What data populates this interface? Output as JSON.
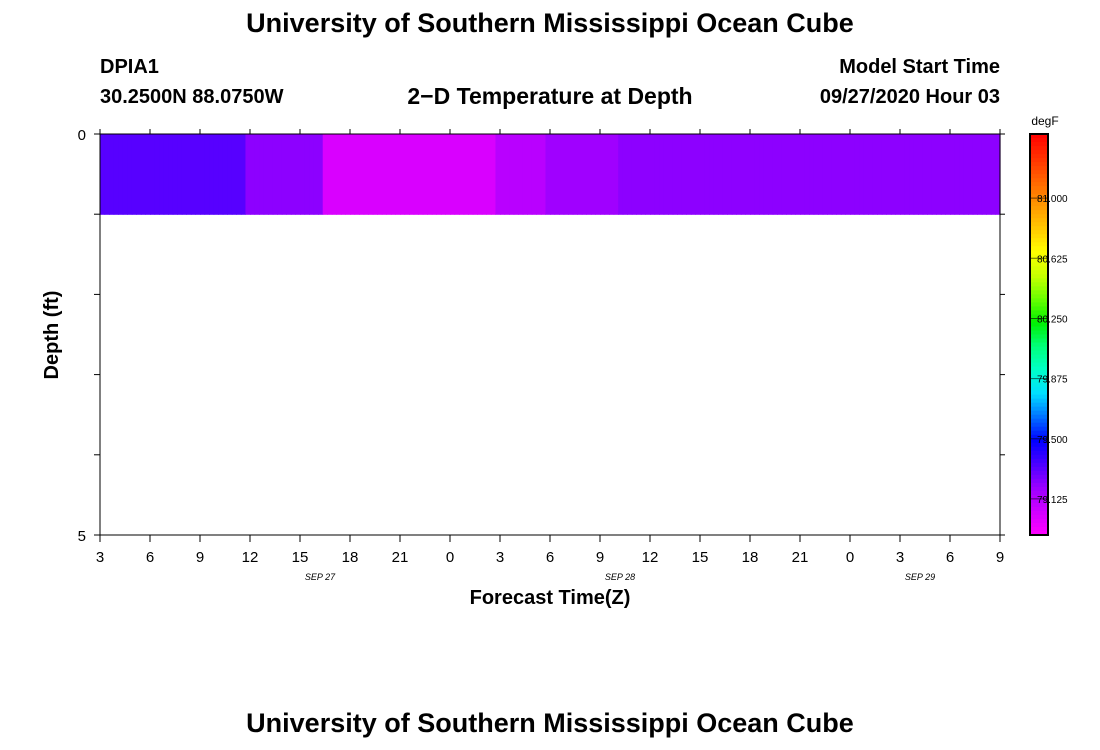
{
  "header": {
    "title": "University of Southern Mississippi Ocean Cube",
    "station_id": "DPIA1",
    "coordinates": "30.2500N 88.0750W",
    "chart_title": "2−D Temperature at Depth",
    "model_start_label": "Model Start Time",
    "model_start_value": "09/27/2020 Hour 03"
  },
  "footer": {
    "title": "University of Southern Mississippi Ocean Cube"
  },
  "chart_data": {
    "type": "heatmap",
    "title": "2−D Temperature at Depth",
    "xlabel": "Forecast Time(Z)",
    "ylabel": "Depth (ft)",
    "units": "degF",
    "x_start": "09/27/2020 03Z",
    "x_step_hours": 1,
    "x_ticks": [
      "3",
      "6",
      "9",
      "12",
      "15",
      "18",
      "21",
      "0",
      "3",
      "6",
      "9",
      "12",
      "15",
      "18",
      "21",
      "0",
      "3",
      "6",
      "9"
    ],
    "date_labels": [
      {
        "label": "SEP 27",
        "after_tick": 4
      },
      {
        "label": "SEP 28",
        "after_tick": 10
      },
      {
        "label": "SEP 29",
        "after_tick": 16
      }
    ],
    "y_ticks": [
      "0",
      "",
      "",
      "",
      "",
      "5"
    ],
    "ylim": [
      0,
      5
    ],
    "colorbar": {
      "label": "degF",
      "ticks": [
        "81.000",
        "80.625",
        "80.250",
        "79.875",
        "79.500",
        "79.125"
      ],
      "min": 78.9,
      "max": 81.4,
      "colors": [
        "#ff00ff",
        "#d000ff",
        "#9b00ff",
        "#4b00ff",
        "#0000ff",
        "#0070ff",
        "#00e0ff",
        "#00ffc8",
        "#00ff7a",
        "#00f000",
        "#6aff00",
        "#c8ff00",
        "#ffff00",
        "#ffc800",
        "#ff9600",
        "#ff6400",
        "#ff3000",
        "#ff0000"
      ]
    },
    "rows": [
      {
        "depth_range": [
          0,
          1
        ],
        "values": [
          79.32,
          79.32,
          79.32,
          79.32,
          79.32,
          79.32,
          79.32,
          79.32,
          79.32,
          79.32,
          79.32,
          79.32,
          79.32,
          79.32,
          79.32,
          79.32,
          79.32,
          79.32,
          79.32,
          79.32,
          79.32,
          79.32,
          79.32,
          79.32,
          79.32,
          79.32,
          79.32,
          79.32,
          79.32,
          79.32,
          79.32,
          79.32,
          79.22,
          79.22,
          79.22,
          79.22,
          79.22,
          79.22,
          79.22,
          79.22,
          79.22,
          79.22,
          79.22,
          79.22,
          79.22,
          79.22,
          79.22,
          79.22,
          79.22,
          79.02,
          79.02,
          79.02,
          79.02,
          79.02,
          79.02,
          79.02,
          79.02,
          79.02,
          79.02,
          79.02,
          79.02,
          79.02,
          79.02,
          79.02,
          79.02,
          79.02,
          79.02,
          79.02,
          79.02,
          79.02,
          79.02,
          79.02,
          79.02,
          79.02,
          79.02,
          79.02,
          79.02,
          79.02,
          79.02,
          79.02,
          79.02,
          79.02,
          79.02,
          79.02,
          79.02,
          79.02,
          79.02,
          79.11,
          79.11,
          79.11,
          79.11,
          79.11,
          79.11,
          79.11,
          79.11,
          79.11,
          79.11,
          79.11,
          79.18,
          79.18,
          79.18,
          79.18,
          79.18,
          79.18,
          79.18,
          79.18,
          79.18,
          79.18,
          79.18,
          79.18,
          79.18,
          79.18,
          79.18,
          79.18,
          79.22,
          79.22,
          79.22,
          79.22,
          79.22,
          79.22,
          79.22,
          79.22,
          79.22,
          79.22,
          79.22,
          79.22,
          79.22,
          79.22,
          79.22,
          79.22,
          79.22,
          79.22,
          79.22,
          79.22,
          79.22,
          79.22,
          79.22,
          79.22,
          79.22,
          79.22,
          79.22,
          79.22,
          79.22,
          79.22,
          79.22,
          79.22,
          79.22,
          79.22,
          79.22,
          79.22,
          79.22,
          79.22,
          79.22,
          79.22,
          79.22,
          79.22,
          79.22,
          79.22,
          79.22,
          79.22,
          79.22,
          79.22,
          79.22,
          79.22,
          79.22,
          79.22,
          79.22,
          79.22,
          79.22,
          79.22,
          79.22,
          79.22,
          79.22,
          79.22,
          79.22,
          79.22,
          79.22,
          79.22,
          79.22,
          79.22,
          79.22,
          79.22,
          79.22,
          79.22,
          79.22,
          79.22,
          79.22,
          79.22,
          79.22,
          79.22,
          79.22,
          79.22,
          79.22,
          79.22,
          79.22,
          79.22,
          79.22,
          79.22
        ]
      }
    ]
  }
}
